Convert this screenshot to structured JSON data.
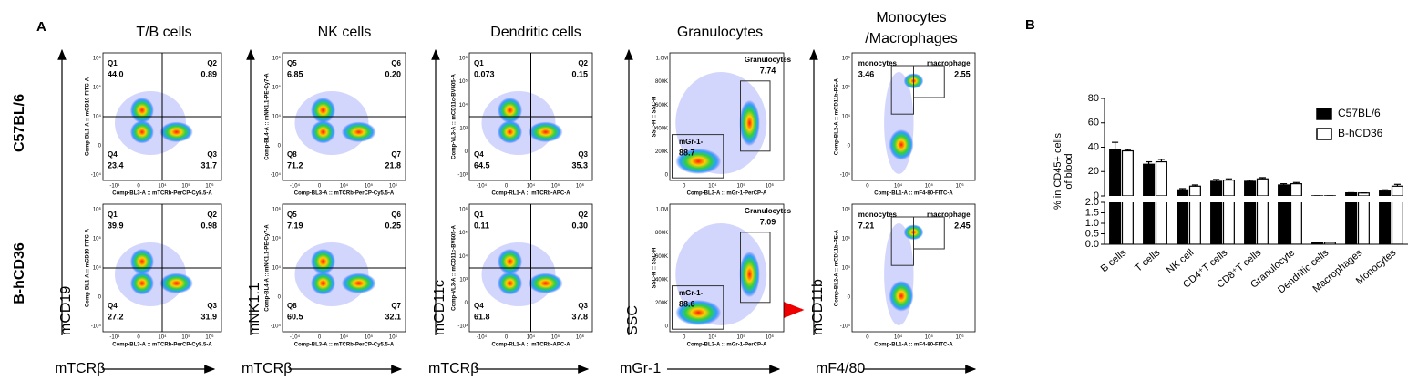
{
  "panel_a": {
    "label": "A",
    "row_labels": [
      "C57BL/6",
      "B-hCD36"
    ],
    "columns": [
      {
        "title": [
          "T/B cells"
        ],
        "y_label": "mCD19",
        "x_label": "mTCRβ",
        "kind": "quadrant",
        "x_axis_title": "Comp-BL3-A :: mTCRb-PerCP-Cy5.5-A",
        "y_axis_title": "Comp-BL1-A :: mCD19-FITC-A",
        "x_ticks": [
          "-10⁴",
          "0",
          "10⁴",
          "10⁵",
          "10⁶"
        ],
        "y_ticks": [
          "10⁶",
          "10⁵",
          "10⁴",
          "0",
          "-10⁴"
        ],
        "rows": [
          {
            "gates": [
              {
                "name": "Q1",
                "value": "44.0"
              },
              {
                "name": "Q2",
                "value": "0.89"
              },
              {
                "name": "Q4",
                "value": "23.4"
              },
              {
                "name": "Q3",
                "value": "31.7"
              }
            ]
          },
          {
            "gates": [
              {
                "name": "Q1",
                "value": "39.9"
              },
              {
                "name": "Q2",
                "value": "0.98"
              },
              {
                "name": "Q4",
                "value": "27.2"
              },
              {
                "name": "Q3",
                "value": "31.9"
              }
            ]
          }
        ]
      },
      {
        "title": [
          "NK cells"
        ],
        "y_label": "mNK1.1",
        "x_label": "mTCRβ",
        "kind": "quadrant",
        "x_axis_title": "Comp-BL3-A :: mTCRb-PerCP-Cy5.5-A",
        "y_axis_title": "Comp-BL4-A :: mNK1.1-PE-Cy7-A",
        "x_ticks": [
          "-10⁴",
          "0",
          "10⁴",
          "10⁵",
          "10⁶"
        ],
        "y_ticks": [
          "10⁶",
          "10⁵",
          "10⁴",
          "0",
          "-10⁴"
        ],
        "rows": [
          {
            "gates": [
              {
                "name": "Q5",
                "value": "6.85"
              },
              {
                "name": "Q6",
                "value": "0.20"
              },
              {
                "name": "Q8",
                "value": "71.2"
              },
              {
                "name": "Q7",
                "value": "21.8"
              }
            ]
          },
          {
            "gates": [
              {
                "name": "Q5",
                "value": "7.19"
              },
              {
                "name": "Q6",
                "value": "0.25"
              },
              {
                "name": "Q8",
                "value": "60.5"
              },
              {
                "name": "Q7",
                "value": "32.1"
              }
            ]
          }
        ]
      },
      {
        "title": [
          "Dendritic cells"
        ],
        "y_label": "mCD11c",
        "x_label": "mTCRβ",
        "kind": "quadrant",
        "x_axis_title": "Comp-RL1-A :: mTCRb-APC-A",
        "y_axis_title": "Comp-VL3-A :: mCD11c-BV605-A",
        "x_ticks": [
          "-10⁴",
          "0",
          "10⁴",
          "10⁵",
          "10⁶"
        ],
        "y_ticks": [
          "10⁶",
          "10⁵",
          "10⁴",
          "10³",
          "0",
          "-10³"
        ],
        "rows": [
          {
            "gates": [
              {
                "name": "Q1",
                "value": "0.073"
              },
              {
                "name": "Q2",
                "value": "0.15"
              },
              {
                "name": "Q4",
                "value": "64.5"
              },
              {
                "name": "Q3",
                "value": "35.3"
              }
            ]
          },
          {
            "gates": [
              {
                "name": "Q1",
                "value": "0.11"
              },
              {
                "name": "Q2",
                "value": "0.30"
              },
              {
                "name": "Q4",
                "value": "61.8"
              },
              {
                "name": "Q3",
                "value": "37.8"
              }
            ]
          }
        ]
      },
      {
        "title": [
          "Granulocytes"
        ],
        "y_label": "SSC",
        "x_label": "mGr-1",
        "kind": "granulocyte",
        "x_axis_title": "Comp-BL3-A :: mGr-1-PerCP-A",
        "y_axis_title": "SSC-H :: SSC-H",
        "x_ticks": [
          "0",
          "10⁴",
          "10⁵",
          "10⁶"
        ],
        "y_ticks": [
          "1.0M",
          "800K",
          "600K",
          "400K",
          "200K",
          "0"
        ],
        "rows": [
          {
            "gates": [
              {
                "name": "Granulocytes",
                "value": "7.74"
              },
              {
                "name": "mGr-1-",
                "value": "88.7"
              }
            ]
          },
          {
            "gates": [
              {
                "name": "Granulocytes",
                "value": "7.09"
              },
              {
                "name": "mGr-1-",
                "value": "88.6"
              }
            ]
          }
        ]
      },
      {
        "title": [
          "Monocytes",
          "/Macrophages"
        ],
        "y_label": "mCD11b",
        "x_label": "mF4/80",
        "kind": "monocyte",
        "x_axis_title": "Comp-BL1-A :: mF4-80-FITC-A",
        "y_axis_title": "Comp-BL2-A :: mCD11b-PE-A",
        "x_ticks": [
          "0",
          "10⁴",
          "10⁵",
          "10⁶"
        ],
        "y_ticks": [
          "10⁶",
          "10⁵",
          "10⁴",
          "0",
          "-10⁴"
        ],
        "rows": [
          {
            "gates": [
              {
                "name": "monocytes",
                "value": "3.46"
              },
              {
                "name": "macrophage",
                "value": "2.55"
              }
            ]
          },
          {
            "gates": [
              {
                "name": "monocytes",
                "value": "7.21"
              },
              {
                "name": "macrophage",
                "value": "2.45"
              }
            ]
          }
        ]
      }
    ]
  },
  "chart_data": {
    "type": "bar",
    "panel_label": "B",
    "ylabel_lines": [
      "% in CD45+ cells",
      "of blood"
    ],
    "categories": [
      "B cells",
      "T cells",
      "NK cell",
      "CD4⁺T cells",
      "CD8⁺T cells",
      "Granulocyte",
      "Dendritic cells",
      "Macrophages",
      "Monocytes"
    ],
    "series": [
      {
        "name": "C57BL/6",
        "color": "#000000",
        "values": [
          38,
          26,
          5,
          12,
          12,
          9,
          0.08,
          2.55,
          4
        ],
        "errors": [
          6,
          2,
          1,
          1.5,
          1,
          1,
          0.01,
          0.1,
          1
        ]
      },
      {
        "name": "B-hCD36",
        "color": "#ffffff",
        "values": [
          37,
          28,
          8,
          13,
          14,
          10,
          0.09,
          2.45,
          8
        ],
        "errors": [
          1,
          2,
          1,
          1,
          1,
          1,
          0.01,
          0.1,
          1.5
        ]
      }
    ],
    "ylim": [
      0,
      80
    ],
    "yticks": [
      0,
      20,
      40,
      60,
      80
    ],
    "ylim_lower": [
      0,
      2
    ],
    "yticks_lower": [
      {
        "value": 0,
        "label": "0.0"
      },
      {
        "value": 0.5,
        "label": "0.5"
      },
      {
        "value": 1,
        "label": "1.0"
      },
      {
        "value": 1.5,
        "label": "1.5"
      },
      {
        "value": 2,
        "label": "2.0"
      }
    ]
  }
}
